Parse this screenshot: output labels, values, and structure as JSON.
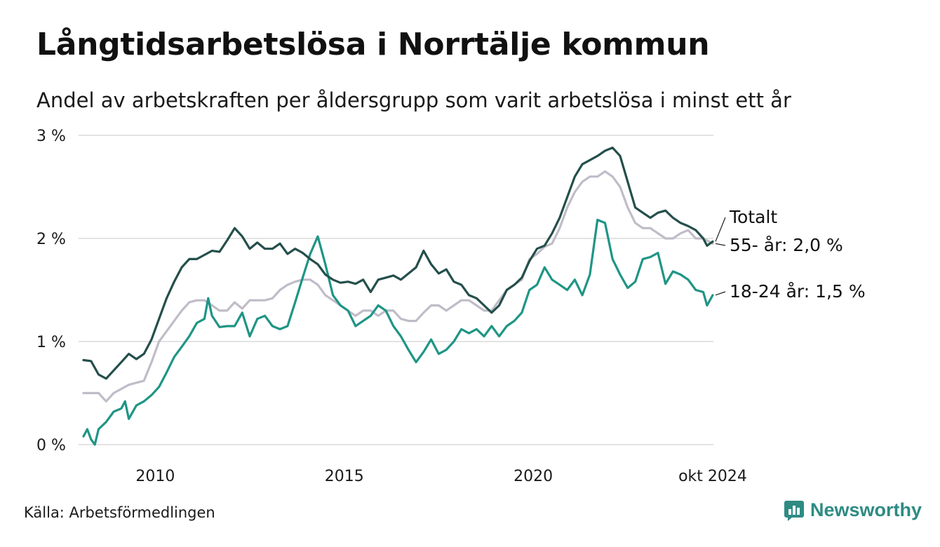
{
  "header": {
    "title": "Långtidsarbetslösa i Norrtälje kommun",
    "subtitle": "Andel av arbetskraften per åldersgrupp som varit arbetslösa i minst ett år"
  },
  "footer": {
    "source": "Källa: Arbetsförmedlingen",
    "brand": "Newsworthy",
    "brand_icon": "newsworthy-logo-icon"
  },
  "colors": {
    "total": "#244f4b",
    "age_55": "#c0bcc8",
    "age_18_24": "#1f9585",
    "grid": "#e3e3e3",
    "brand": "#2e8b84"
  },
  "chart_data": {
    "type": "line",
    "title": "Långtidsarbetslösa i Norrtälje kommun",
    "xlabel": "",
    "ylabel": "",
    "ylim": [
      0,
      3
    ],
    "xlim": [
      2008.1,
      2024.8
    ],
    "y_ticks": [
      {
        "value": 0,
        "label": "0 %"
      },
      {
        "value": 1,
        "label": "1 %"
      },
      {
        "value": 2,
        "label": "2 %"
      },
      {
        "value": 3,
        "label": "3 %"
      }
    ],
    "x_ticks": [
      {
        "value": 2010,
        "label": "2010"
      },
      {
        "value": 2015,
        "label": "2015"
      },
      {
        "value": 2020,
        "label": "2020"
      },
      {
        "value": 2024.75,
        "label": "okt 2024"
      }
    ],
    "grid": true,
    "series": [
      {
        "name": "Totalt",
        "label": "Totalt",
        "color": "#244f4b",
        "points": [
          [
            2008.1,
            0.82
          ],
          [
            2008.3,
            0.81
          ],
          [
            2008.5,
            0.68
          ],
          [
            2008.7,
            0.64
          ],
          [
            2008.9,
            0.72
          ],
          [
            2009.1,
            0.8
          ],
          [
            2009.3,
            0.88
          ],
          [
            2009.5,
            0.83
          ],
          [
            2009.7,
            0.88
          ],
          [
            2009.9,
            1.02
          ],
          [
            2010.1,
            1.22
          ],
          [
            2010.3,
            1.42
          ],
          [
            2010.5,
            1.58
          ],
          [
            2010.7,
            1.72
          ],
          [
            2010.9,
            1.8
          ],
          [
            2011.1,
            1.8
          ],
          [
            2011.3,
            1.84
          ],
          [
            2011.5,
            1.88
          ],
          [
            2011.7,
            1.87
          ],
          [
            2011.9,
            1.98
          ],
          [
            2012.1,
            2.1
          ],
          [
            2012.3,
            2.02
          ],
          [
            2012.5,
            1.9
          ],
          [
            2012.7,
            1.96
          ],
          [
            2012.9,
            1.9
          ],
          [
            2013.1,
            1.9
          ],
          [
            2013.3,
            1.95
          ],
          [
            2013.5,
            1.85
          ],
          [
            2013.7,
            1.9
          ],
          [
            2013.9,
            1.86
          ],
          [
            2014.1,
            1.8
          ],
          [
            2014.3,
            1.75
          ],
          [
            2014.5,
            1.65
          ],
          [
            2014.7,
            1.6
          ],
          [
            2014.9,
            1.57
          ],
          [
            2015.1,
            1.58
          ],
          [
            2015.3,
            1.56
          ],
          [
            2015.5,
            1.6
          ],
          [
            2015.7,
            1.48
          ],
          [
            2015.9,
            1.6
          ],
          [
            2016.1,
            1.62
          ],
          [
            2016.3,
            1.64
          ],
          [
            2016.5,
            1.6
          ],
          [
            2016.7,
            1.66
          ],
          [
            2016.9,
            1.72
          ],
          [
            2017.1,
            1.88
          ],
          [
            2017.3,
            1.75
          ],
          [
            2017.5,
            1.66
          ],
          [
            2017.7,
            1.7
          ],
          [
            2017.9,
            1.58
          ],
          [
            2018.1,
            1.55
          ],
          [
            2018.3,
            1.45
          ],
          [
            2018.5,
            1.42
          ],
          [
            2018.7,
            1.35
          ],
          [
            2018.9,
            1.28
          ],
          [
            2019.1,
            1.35
          ],
          [
            2019.3,
            1.5
          ],
          [
            2019.5,
            1.55
          ],
          [
            2019.7,
            1.62
          ],
          [
            2019.9,
            1.78
          ],
          [
            2020.1,
            1.9
          ],
          [
            2020.3,
            1.93
          ],
          [
            2020.5,
            2.05
          ],
          [
            2020.7,
            2.2
          ],
          [
            2020.9,
            2.4
          ],
          [
            2021.1,
            2.6
          ],
          [
            2021.3,
            2.72
          ],
          [
            2021.5,
            2.76
          ],
          [
            2021.7,
            2.8
          ],
          [
            2021.9,
            2.85
          ],
          [
            2022.1,
            2.88
          ],
          [
            2022.3,
            2.8
          ],
          [
            2022.5,
            2.55
          ],
          [
            2022.7,
            2.3
          ],
          [
            2022.9,
            2.25
          ],
          [
            2023.1,
            2.2
          ],
          [
            2023.3,
            2.25
          ],
          [
            2023.5,
            2.27
          ],
          [
            2023.7,
            2.2
          ],
          [
            2023.9,
            2.15
          ],
          [
            2024.1,
            2.12
          ],
          [
            2024.3,
            2.08
          ],
          [
            2024.5,
            2.0
          ],
          [
            2024.6,
            1.93
          ],
          [
            2024.75,
            1.97
          ]
        ]
      },
      {
        "name": "55- år",
        "label": "55- år: 2,0 %",
        "color": "#c0bcc8",
        "points": [
          [
            2008.1,
            0.5
          ],
          [
            2008.5,
            0.5
          ],
          [
            2008.7,
            0.42
          ],
          [
            2008.9,
            0.5
          ],
          [
            2009.3,
            0.58
          ],
          [
            2009.7,
            0.62
          ],
          [
            2009.9,
            0.8
          ],
          [
            2010.1,
            1.0
          ],
          [
            2010.3,
            1.1
          ],
          [
            2010.5,
            1.2
          ],
          [
            2010.7,
            1.3
          ],
          [
            2010.9,
            1.38
          ],
          [
            2011.1,
            1.4
          ],
          [
            2011.3,
            1.4
          ],
          [
            2011.5,
            1.35
          ],
          [
            2011.7,
            1.3
          ],
          [
            2011.9,
            1.3
          ],
          [
            2012.1,
            1.38
          ],
          [
            2012.3,
            1.32
          ],
          [
            2012.5,
            1.4
          ],
          [
            2012.7,
            1.4
          ],
          [
            2012.9,
            1.4
          ],
          [
            2013.1,
            1.42
          ],
          [
            2013.3,
            1.5
          ],
          [
            2013.5,
            1.55
          ],
          [
            2013.7,
            1.58
          ],
          [
            2013.9,
            1.6
          ],
          [
            2014.1,
            1.6
          ],
          [
            2014.3,
            1.55
          ],
          [
            2014.5,
            1.45
          ],
          [
            2014.7,
            1.4
          ],
          [
            2014.9,
            1.35
          ],
          [
            2015.1,
            1.3
          ],
          [
            2015.3,
            1.25
          ],
          [
            2015.5,
            1.3
          ],
          [
            2015.7,
            1.3
          ],
          [
            2015.9,
            1.25
          ],
          [
            2016.1,
            1.3
          ],
          [
            2016.3,
            1.3
          ],
          [
            2016.5,
            1.22
          ],
          [
            2016.7,
            1.2
          ],
          [
            2016.9,
            1.2
          ],
          [
            2017.1,
            1.28
          ],
          [
            2017.3,
            1.35
          ],
          [
            2017.5,
            1.35
          ],
          [
            2017.7,
            1.3
          ],
          [
            2017.9,
            1.35
          ],
          [
            2018.1,
            1.4
          ],
          [
            2018.3,
            1.4
          ],
          [
            2018.5,
            1.35
          ],
          [
            2018.7,
            1.3
          ],
          [
            2018.9,
            1.3
          ],
          [
            2019.1,
            1.4
          ],
          [
            2019.3,
            1.5
          ],
          [
            2019.5,
            1.55
          ],
          [
            2019.7,
            1.6
          ],
          [
            2019.9,
            1.8
          ],
          [
            2020.1,
            1.85
          ],
          [
            2020.3,
            1.92
          ],
          [
            2020.5,
            1.95
          ],
          [
            2020.7,
            2.1
          ],
          [
            2020.9,
            2.3
          ],
          [
            2021.1,
            2.45
          ],
          [
            2021.3,
            2.55
          ],
          [
            2021.5,
            2.6
          ],
          [
            2021.7,
            2.6
          ],
          [
            2021.9,
            2.65
          ],
          [
            2022.1,
            2.6
          ],
          [
            2022.3,
            2.5
          ],
          [
            2022.5,
            2.3
          ],
          [
            2022.7,
            2.15
          ],
          [
            2022.9,
            2.1
          ],
          [
            2023.1,
            2.1
          ],
          [
            2023.3,
            2.05
          ],
          [
            2023.5,
            2.0
          ],
          [
            2023.7,
            2.0
          ],
          [
            2023.9,
            2.05
          ],
          [
            2024.1,
            2.08
          ],
          [
            2024.3,
            2.0
          ],
          [
            2024.5,
            2.0
          ],
          [
            2024.75,
            1.95
          ]
        ]
      },
      {
        "name": "18-24 år",
        "label": "18-24 år: 1,5 %",
        "color": "#1f9585",
        "points": [
          [
            2008.1,
            0.08
          ],
          [
            2008.2,
            0.15
          ],
          [
            2008.3,
            0.05
          ],
          [
            2008.4,
            0.0
          ],
          [
            2008.5,
            0.15
          ],
          [
            2008.7,
            0.22
          ],
          [
            2008.9,
            0.32
          ],
          [
            2009.1,
            0.35
          ],
          [
            2009.2,
            0.42
          ],
          [
            2009.3,
            0.25
          ],
          [
            2009.5,
            0.38
          ],
          [
            2009.7,
            0.42
          ],
          [
            2009.9,
            0.48
          ],
          [
            2010.1,
            0.56
          ],
          [
            2010.3,
            0.7
          ],
          [
            2010.5,
            0.85
          ],
          [
            2010.7,
            0.95
          ],
          [
            2010.9,
            1.05
          ],
          [
            2011.1,
            1.18
          ],
          [
            2011.3,
            1.22
          ],
          [
            2011.4,
            1.42
          ],
          [
            2011.5,
            1.25
          ],
          [
            2011.7,
            1.14
          ],
          [
            2011.9,
            1.15
          ],
          [
            2012.1,
            1.15
          ],
          [
            2012.3,
            1.28
          ],
          [
            2012.5,
            1.05
          ],
          [
            2012.7,
            1.22
          ],
          [
            2012.9,
            1.25
          ],
          [
            2013.1,
            1.15
          ],
          [
            2013.3,
            1.12
          ],
          [
            2013.5,
            1.15
          ],
          [
            2013.7,
            1.38
          ],
          [
            2013.9,
            1.62
          ],
          [
            2014.1,
            1.85
          ],
          [
            2014.3,
            2.02
          ],
          [
            2014.5,
            1.75
          ],
          [
            2014.7,
            1.45
          ],
          [
            2014.9,
            1.35
          ],
          [
            2015.1,
            1.3
          ],
          [
            2015.3,
            1.15
          ],
          [
            2015.5,
            1.2
          ],
          [
            2015.7,
            1.25
          ],
          [
            2015.9,
            1.35
          ],
          [
            2016.1,
            1.3
          ],
          [
            2016.3,
            1.15
          ],
          [
            2016.5,
            1.05
          ],
          [
            2016.7,
            0.92
          ],
          [
            2016.9,
            0.8
          ],
          [
            2017.1,
            0.9
          ],
          [
            2017.3,
            1.02
          ],
          [
            2017.5,
            0.88
          ],
          [
            2017.7,
            0.92
          ],
          [
            2017.9,
            1.0
          ],
          [
            2018.1,
            1.12
          ],
          [
            2018.3,
            1.08
          ],
          [
            2018.5,
            1.12
          ],
          [
            2018.7,
            1.05
          ],
          [
            2018.9,
            1.15
          ],
          [
            2019.1,
            1.05
          ],
          [
            2019.3,
            1.15
          ],
          [
            2019.5,
            1.2
          ],
          [
            2019.7,
            1.28
          ],
          [
            2019.9,
            1.5
          ],
          [
            2020.1,
            1.55
          ],
          [
            2020.3,
            1.72
          ],
          [
            2020.5,
            1.6
          ],
          [
            2020.7,
            1.55
          ],
          [
            2020.9,
            1.5
          ],
          [
            2021.1,
            1.6
          ],
          [
            2021.3,
            1.45
          ],
          [
            2021.5,
            1.65
          ],
          [
            2021.7,
            2.18
          ],
          [
            2021.9,
            2.15
          ],
          [
            2022.1,
            1.8
          ],
          [
            2022.3,
            1.65
          ],
          [
            2022.5,
            1.52
          ],
          [
            2022.7,
            1.58
          ],
          [
            2022.9,
            1.8
          ],
          [
            2023.1,
            1.82
          ],
          [
            2023.3,
            1.86
          ],
          [
            2023.5,
            1.56
          ],
          [
            2023.7,
            1.68
          ],
          [
            2023.9,
            1.65
          ],
          [
            2024.1,
            1.6
          ],
          [
            2024.3,
            1.5
          ],
          [
            2024.5,
            1.48
          ],
          [
            2024.6,
            1.35
          ],
          [
            2024.75,
            1.45
          ]
        ]
      }
    ]
  }
}
